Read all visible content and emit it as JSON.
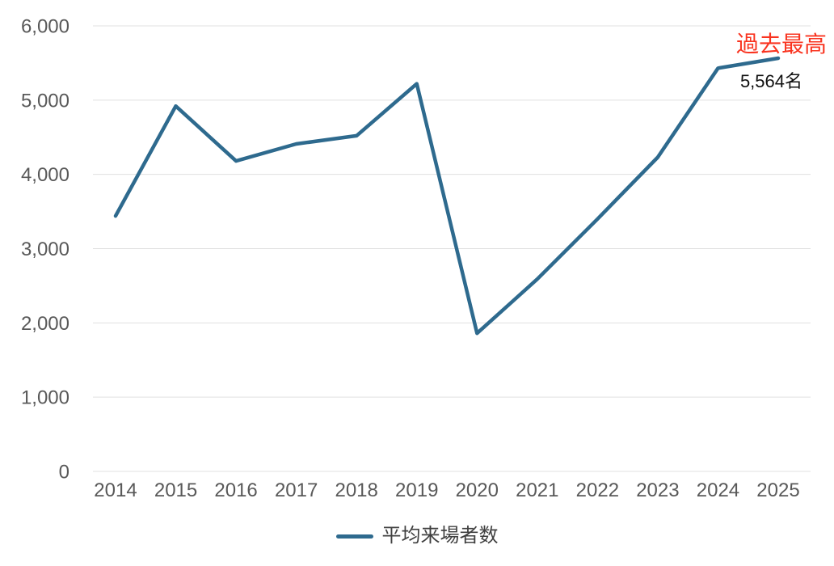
{
  "chart_data": {
    "type": "line",
    "title": "",
    "categories": [
      "2014",
      "2015",
      "2016",
      "2017",
      "2018",
      "2019",
      "2020",
      "2021",
      "2022",
      "2023",
      "2024",
      "2025"
    ],
    "series": [
      {
        "name": "平均来場者数",
        "color": "#2e6a8e",
        "values": [
          3440,
          4920,
          4180,
          4410,
          4520,
          5220,
          1860,
          2590,
          3400,
          4230,
          5430,
          5564
        ]
      }
    ],
    "xlabel": "",
    "ylabel": "",
    "ylim": [
      0,
      6000
    ],
    "ytick_step": 1000,
    "ytick_labels": [
      "0",
      "1,000",
      "2,000",
      "3,000",
      "4,000",
      "5,000",
      "6,000"
    ],
    "grid": "horizontal-only",
    "legend_position": "bottom-center",
    "annotations": [
      {
        "text": "過去最高",
        "color": "#f93420",
        "position": "above-last-point",
        "refers_to": "2025"
      },
      {
        "text": "5,564名",
        "color": "#111111",
        "position": "below-last-point",
        "refers_to": "2025"
      }
    ]
  },
  "colors": {
    "line": "#2e6a8e",
    "gridline": "#e0e0e0",
    "axis_text": "#595959",
    "legend_text": "#404040",
    "annotation_red": "#f93420",
    "value_label": "#111111",
    "background": "#ffffff"
  }
}
